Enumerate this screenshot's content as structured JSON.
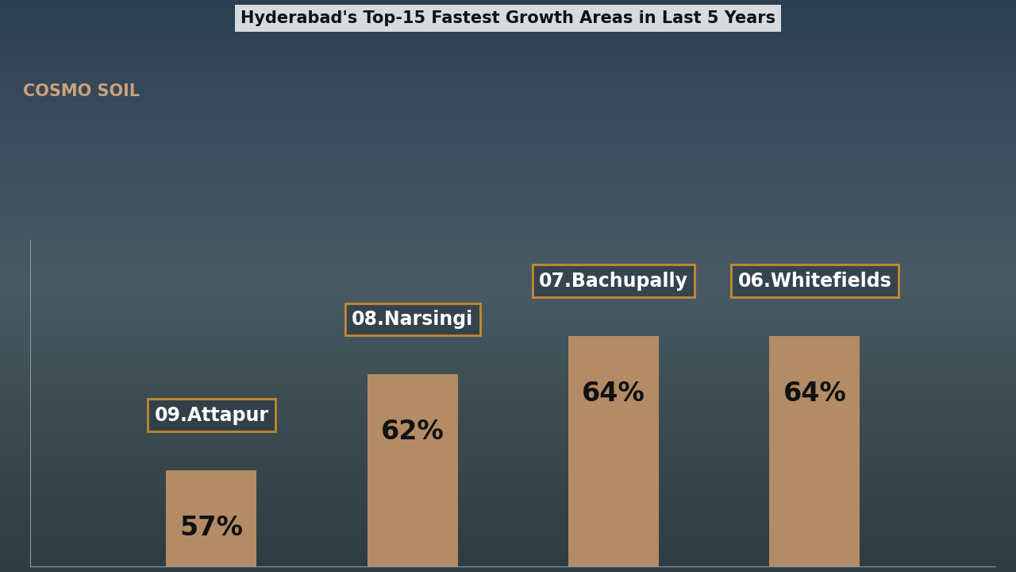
{
  "chart_data": {
    "type": "bar",
    "title": "Hyderabad's Top-15 Fastest Growth Areas in Last 5 Years",
    "brand": "COSMO SOIL",
    "categories": [
      "09.Attapur",
      "08.Narsingi",
      "07.Bachupally",
      "06.Whitefields"
    ],
    "values": [
      57,
      62,
      64,
      64
    ],
    "value_labels": [
      "57%",
      "62%",
      "64%",
      "64%"
    ],
    "color": "#b38b66",
    "ylim": [
      52,
      69
    ],
    "yticks": [],
    "grid": false,
    "data_labels": true,
    "tick_labels": false
  }
}
